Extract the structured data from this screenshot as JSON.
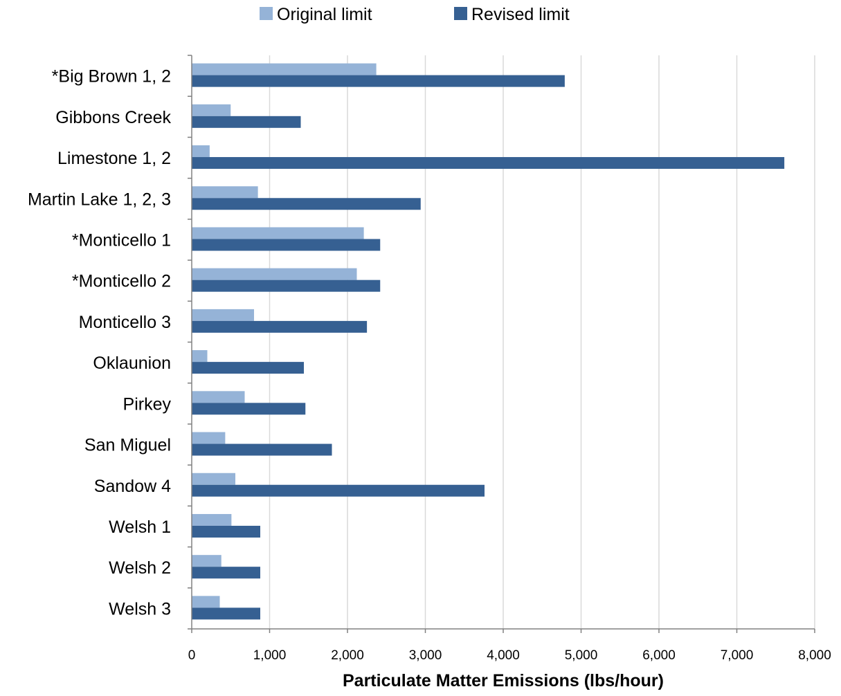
{
  "colors": {
    "original": "#95B3D7",
    "revised": "#366092",
    "grid": "#d9d9d9",
    "axis": "#808080"
  },
  "chart_data": {
    "type": "bar",
    "orientation": "horizontal",
    "categories": [
      "*Big Brown 1, 2",
      "Gibbons Creek",
      "Limestone 1, 2",
      "Martin Lake 1, 2, 3",
      "*Monticello 1",
      "*Monticello 2",
      "Monticello 3",
      "Oklaunion",
      "Pirkey",
      "San Miguel",
      "Sandow 4",
      "Welsh 1",
      "Welsh 2",
      "Welsh 3"
    ],
    "series": [
      {
        "name": "Original limit",
        "values": [
          2370,
          500,
          230,
          850,
          2210,
          2120,
          800,
          200,
          680,
          430,
          560,
          510,
          380,
          360
        ]
      },
      {
        "name": "Revised limit",
        "values": [
          4790,
          1400,
          7610,
          2940,
          2420,
          2420,
          2250,
          1440,
          1460,
          1800,
          3760,
          880,
          880,
          880
        ]
      }
    ],
    "xlabel": "Particulate Matter Emissions (lbs/hour)",
    "ylabel": "",
    "xlim": [
      0,
      8000
    ],
    "xticks": [
      0,
      1000,
      2000,
      3000,
      4000,
      5000,
      6000,
      7000,
      8000
    ],
    "xtick_labels": [
      "0",
      "1,000",
      "2,000",
      "3,000",
      "4,000",
      "5,000",
      "6,000",
      "7,000",
      "8,000"
    ],
    "grid": "vertical",
    "legend_position": "top"
  }
}
